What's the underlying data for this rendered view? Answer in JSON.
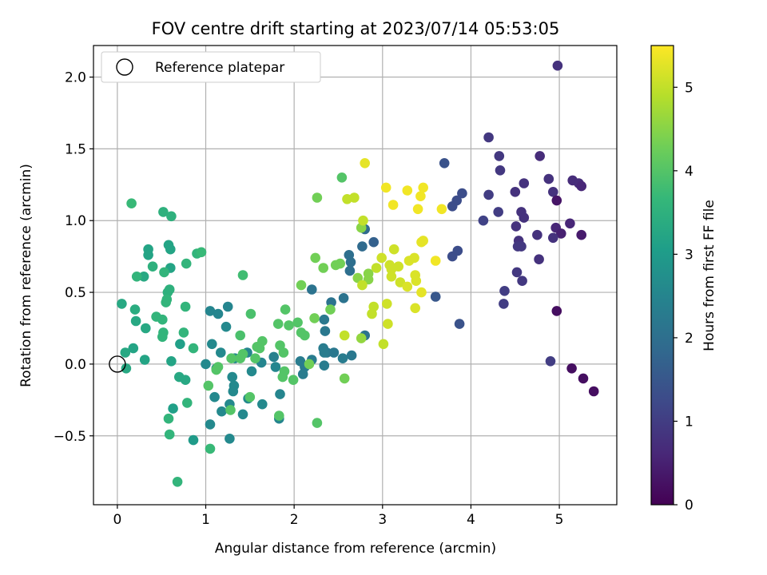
{
  "chart_data": {
    "type": "scatter",
    "title": "FOV centre drift starting at 2023/07/14 05:53:05",
    "xlabel": "Angular distance from reference (arcmin)",
    "ylabel": "Rotation from reference (arcmin)",
    "xlim": [
      -0.27,
      5.65
    ],
    "ylim": [
      -0.98,
      2.22
    ],
    "xticks": [
      0,
      1,
      2,
      3,
      4,
      5
    ],
    "xtick_labels": [
      "0",
      "1",
      "2",
      "3",
      "4",
      "5"
    ],
    "yticks": [
      -0.5,
      0.0,
      0.5,
      1.0,
      1.5,
      2.0
    ],
    "ytick_labels": [
      "−0.5",
      "0.0",
      "0.5",
      "1.0",
      "1.5",
      "2.0"
    ],
    "grid": true,
    "legend": {
      "position": "top-left",
      "label": "Reference platepar"
    },
    "reference_point": {
      "x": 0,
      "y": 0
    },
    "colorbar": {
      "label": "Hours from first FF file",
      "range": [
        0,
        5.5
      ],
      "ticks": [
        0,
        1,
        2,
        3,
        4,
        5
      ],
      "tick_labels": [
        "0",
        "1",
        "2",
        "3",
        "4",
        "5"
      ],
      "colormap": "viridis",
      "colors": [
        "#440154",
        "#482878",
        "#3e4989",
        "#31688e",
        "#26828e",
        "#1f9e89",
        "#35b779",
        "#6ece58",
        "#b5de2b",
        "#fde725"
      ]
    },
    "points": [
      {
        "x": 4.98,
        "y": 2.08,
        "h": 0.8
      },
      {
        "x": 4.2,
        "y": 1.58,
        "h": 0.9
      },
      {
        "x": 4.32,
        "y": 1.45,
        "h": 0.9
      },
      {
        "x": 4.78,
        "y": 1.45,
        "h": 0.7
      },
      {
        "x": 4.33,
        "y": 1.35,
        "h": 0.9
      },
      {
        "x": 4.88,
        "y": 1.29,
        "h": 0.8
      },
      {
        "x": 4.6,
        "y": 1.26,
        "h": 0.8
      },
      {
        "x": 5.15,
        "y": 1.28,
        "h": 0.7
      },
      {
        "x": 5.22,
        "y": 1.26,
        "h": 0.7
      },
      {
        "x": 5.25,
        "y": 1.24,
        "h": 0.6
      },
      {
        "x": 4.5,
        "y": 1.2,
        "h": 0.8
      },
      {
        "x": 4.93,
        "y": 1.2,
        "h": 0.8
      },
      {
        "x": 4.97,
        "y": 1.14,
        "h": 0.3
      },
      {
        "x": 4.2,
        "y": 1.18,
        "h": 1.0
      },
      {
        "x": 4.31,
        "y": 1.06,
        "h": 1.0
      },
      {
        "x": 4.57,
        "y": 1.06,
        "h": 0.8
      },
      {
        "x": 4.6,
        "y": 1.02,
        "h": 0.8
      },
      {
        "x": 4.14,
        "y": 1.0,
        "h": 1.1
      },
      {
        "x": 4.51,
        "y": 0.96,
        "h": 0.8
      },
      {
        "x": 4.75,
        "y": 0.9,
        "h": 0.8
      },
      {
        "x": 4.96,
        "y": 0.95,
        "h": 0.6
      },
      {
        "x": 5.12,
        "y": 0.98,
        "h": 0.6
      },
      {
        "x": 5.02,
        "y": 0.91,
        "h": 0.5
      },
      {
        "x": 5.25,
        "y": 0.9,
        "h": 0.4
      },
      {
        "x": 4.93,
        "y": 0.88,
        "h": 0.8
      },
      {
        "x": 4.54,
        "y": 0.86,
        "h": 0.8
      },
      {
        "x": 4.57,
        "y": 0.82,
        "h": 0.9
      },
      {
        "x": 4.53,
        "y": 0.82,
        "h": 0.9
      },
      {
        "x": 4.77,
        "y": 0.73,
        "h": 0.8
      },
      {
        "x": 4.52,
        "y": 0.64,
        "h": 0.9
      },
      {
        "x": 4.58,
        "y": 0.58,
        "h": 0.9
      },
      {
        "x": 4.38,
        "y": 0.51,
        "h": 1.0
      },
      {
        "x": 4.37,
        "y": 0.42,
        "h": 1.0
      },
      {
        "x": 4.97,
        "y": 0.37,
        "h": 0.2
      },
      {
        "x": 4.9,
        "y": 0.02,
        "h": 1.0
      },
      {
        "x": 5.14,
        "y": -0.03,
        "h": 0.2
      },
      {
        "x": 5.27,
        "y": -0.1,
        "h": 0.2
      },
      {
        "x": 5.39,
        "y": -0.19,
        "h": 0.2
      },
      {
        "x": 3.7,
        "y": 1.4,
        "h": 1.4
      },
      {
        "x": 3.9,
        "y": 1.19,
        "h": 1.3
      },
      {
        "x": 3.84,
        "y": 1.14,
        "h": 1.3
      },
      {
        "x": 3.79,
        "y": 1.1,
        "h": 1.3
      },
      {
        "x": 3.85,
        "y": 0.79,
        "h": 1.3
      },
      {
        "x": 3.79,
        "y": 0.75,
        "h": 1.3
      },
      {
        "x": 3.6,
        "y": 0.47,
        "h": 1.5
      },
      {
        "x": 3.87,
        "y": 0.28,
        "h": 1.4
      },
      {
        "x": 2.8,
        "y": 0.94,
        "h": 1.9
      },
      {
        "x": 2.9,
        "y": 0.85,
        "h": 1.7
      },
      {
        "x": 2.77,
        "y": 0.82,
        "h": 1.9
      },
      {
        "x": 2.62,
        "y": 0.76,
        "h": 2.0
      },
      {
        "x": 2.64,
        "y": 0.71,
        "h": 2.0
      },
      {
        "x": 2.63,
        "y": 0.65,
        "h": 2.0
      },
      {
        "x": 2.2,
        "y": 0.52,
        "h": 2.1
      },
      {
        "x": 2.56,
        "y": 0.46,
        "h": 2.1
      },
      {
        "x": 2.42,
        "y": 0.43,
        "h": 2.1
      },
      {
        "x": 2.34,
        "y": 0.31,
        "h": 2.2
      },
      {
        "x": 2.35,
        "y": 0.23,
        "h": 2.2
      },
      {
        "x": 2.8,
        "y": 0.2,
        "h": 2.1
      },
      {
        "x": 2.33,
        "y": 0.11,
        "h": 2.3
      },
      {
        "x": 2.37,
        "y": 0.08,
        "h": 2.2
      },
      {
        "x": 2.34,
        "y": 0.08,
        "h": 2.3
      },
      {
        "x": 2.45,
        "y": 0.08,
        "h": 2.2
      },
      {
        "x": 2.65,
        "y": 0.06,
        "h": 2.2
      },
      {
        "x": 2.55,
        "y": 0.04,
        "h": 2.3
      },
      {
        "x": 2.2,
        "y": 0.03,
        "h": 2.3
      },
      {
        "x": 2.07,
        "y": 0.02,
        "h": 2.3
      },
      {
        "x": 2.12,
        "y": -0.02,
        "h": 2.3
      },
      {
        "x": 2.34,
        "y": -0.01,
        "h": 2.3
      },
      {
        "x": 2.1,
        "y": -0.07,
        "h": 2.3
      },
      {
        "x": 1.05,
        "y": 0.37,
        "h": 2.5
      },
      {
        "x": 1.14,
        "y": 0.35,
        "h": 2.5
      },
      {
        "x": 1.25,
        "y": 0.4,
        "h": 2.5
      },
      {
        "x": 1.23,
        "y": 0.26,
        "h": 2.6
      },
      {
        "x": 1.07,
        "y": 0.14,
        "h": 2.6
      },
      {
        "x": 1.17,
        "y": 0.08,
        "h": 2.6
      },
      {
        "x": 1.47,
        "y": 0.08,
        "h": 2.5
      },
      {
        "x": 1.33,
        "y": 0.04,
        "h": 2.6
      },
      {
        "x": 1.77,
        "y": 0.05,
        "h": 2.4
      },
      {
        "x": 1.63,
        "y": 0.01,
        "h": 2.5
      },
      {
        "x": 1.0,
        "y": 0.0,
        "h": 2.6
      },
      {
        "x": 1.12,
        "y": -0.03,
        "h": 2.6
      },
      {
        "x": 1.79,
        "y": -0.02,
        "h": 2.5
      },
      {
        "x": 1.52,
        "y": -0.05,
        "h": 2.6
      },
      {
        "x": 1.3,
        "y": -0.09,
        "h": 2.6
      },
      {
        "x": 1.32,
        "y": -0.15,
        "h": 2.6
      },
      {
        "x": 1.31,
        "y": -0.19,
        "h": 2.6
      },
      {
        "x": 1.48,
        "y": -0.24,
        "h": 2.6
      },
      {
        "x": 1.1,
        "y": -0.23,
        "h": 2.6
      },
      {
        "x": 1.27,
        "y": -0.28,
        "h": 2.6
      },
      {
        "x": 1.64,
        "y": -0.28,
        "h": 2.6
      },
      {
        "x": 1.42,
        "y": -0.35,
        "h": 2.6
      },
      {
        "x": 1.18,
        "y": -0.33,
        "h": 2.6
      },
      {
        "x": 1.84,
        "y": -0.21,
        "h": 2.5
      },
      {
        "x": 1.83,
        "y": -0.38,
        "h": 2.5
      },
      {
        "x": 1.05,
        "y": -0.42,
        "h": 2.6
      },
      {
        "x": 1.27,
        "y": -0.52,
        "h": 2.6
      },
      {
        "x": 0.86,
        "y": -0.53,
        "h": 3.0
      },
      {
        "x": 0.63,
        "y": -0.31,
        "h": 3.1
      },
      {
        "x": 0.71,
        "y": 0.14,
        "h": 3.1
      },
      {
        "x": 0.61,
        "y": 0.02,
        "h": 3.2
      },
      {
        "x": 0.7,
        "y": -0.09,
        "h": 3.3
      },
      {
        "x": 0.77,
        "y": -0.11,
        "h": 3.3
      },
      {
        "x": 0.18,
        "y": 0.11,
        "h": 3.2
      },
      {
        "x": 0.09,
        "y": 0.08,
        "h": 3.3
      },
      {
        "x": 0.31,
        "y": 0.03,
        "h": 3.2
      },
      {
        "x": 0.35,
        "y": 0.8,
        "h": 3.2
      },
      {
        "x": 0.35,
        "y": 0.76,
        "h": 3.2
      },
      {
        "x": 0.58,
        "y": 0.83,
        "h": 3.2
      },
      {
        "x": 0.6,
        "y": 0.8,
        "h": 3.2
      },
      {
        "x": 0.6,
        "y": 0.67,
        "h": 3.2
      },
      {
        "x": 0.3,
        "y": 0.61,
        "h": 3.3
      },
      {
        "x": 0.32,
        "y": 0.25,
        "h": 3.3
      },
      {
        "x": 0.21,
        "y": 0.3,
        "h": 3.3
      },
      {
        "x": 0.2,
        "y": 0.38,
        "h": 3.4
      },
      {
        "x": 0.05,
        "y": 0.42,
        "h": 3.3
      },
      {
        "x": 0.1,
        "y": -0.03,
        "h": 3.3
      },
      {
        "x": 0.61,
        "y": 1.03,
        "h": 3.5
      },
      {
        "x": 0.52,
        "y": 1.06,
        "h": 3.5
      },
      {
        "x": 0.16,
        "y": 1.12,
        "h": 3.7
      },
      {
        "x": 0.22,
        "y": 0.61,
        "h": 3.6
      },
      {
        "x": 0.4,
        "y": 0.68,
        "h": 3.5
      },
      {
        "x": 0.53,
        "y": 0.64,
        "h": 3.6
      },
      {
        "x": 0.57,
        "y": 0.5,
        "h": 3.5
      },
      {
        "x": 0.59,
        "y": 0.52,
        "h": 3.5
      },
      {
        "x": 0.56,
        "y": 0.45,
        "h": 3.6
      },
      {
        "x": 0.55,
        "y": 0.43,
        "h": 3.6
      },
      {
        "x": 0.44,
        "y": 0.33,
        "h": 3.6
      },
      {
        "x": 0.51,
        "y": 0.31,
        "h": 3.6
      },
      {
        "x": 0.52,
        "y": 0.22,
        "h": 3.6
      },
      {
        "x": 0.51,
        "y": 0.19,
        "h": 3.6
      },
      {
        "x": 0.75,
        "y": 0.22,
        "h": 3.6
      },
      {
        "x": 0.77,
        "y": 0.4,
        "h": 3.6
      },
      {
        "x": 0.78,
        "y": 0.7,
        "h": 3.6
      },
      {
        "x": 0.9,
        "y": 0.77,
        "h": 3.6
      },
      {
        "x": 0.95,
        "y": 0.78,
        "h": 3.7
      },
      {
        "x": 0.86,
        "y": 0.11,
        "h": 3.6
      },
      {
        "x": 0.79,
        "y": -0.27,
        "h": 3.6
      },
      {
        "x": 0.58,
        "y": -0.38,
        "h": 3.6
      },
      {
        "x": 0.59,
        "y": -0.49,
        "h": 3.6
      },
      {
        "x": 0.68,
        "y": -0.82,
        "h": 3.6
      },
      {
        "x": 1.05,
        "y": -0.59,
        "h": 3.7
      },
      {
        "x": 1.42,
        "y": 0.62,
        "h": 3.8
      },
      {
        "x": 1.51,
        "y": 0.35,
        "h": 3.9
      },
      {
        "x": 1.39,
        "y": 0.2,
        "h": 3.9
      },
      {
        "x": 1.03,
        "y": -0.15,
        "h": 4.0
      },
      {
        "x": 1.12,
        "y": -0.04,
        "h": 4.0
      },
      {
        "x": 1.14,
        "y": -0.02,
        "h": 4.0
      },
      {
        "x": 1.29,
        "y": 0.04,
        "h": 4.0
      },
      {
        "x": 1.39,
        "y": 0.04,
        "h": 4.0
      },
      {
        "x": 1.42,
        "y": 0.07,
        "h": 4.0
      },
      {
        "x": 1.58,
        "y": 0.12,
        "h": 4.0
      },
      {
        "x": 1.64,
        "y": 0.16,
        "h": 4.0
      },
      {
        "x": 1.61,
        "y": 0.11,
        "h": 4.0
      },
      {
        "x": 1.56,
        "y": 0.04,
        "h": 4.0
      },
      {
        "x": 1.84,
        "y": 0.13,
        "h": 4.0
      },
      {
        "x": 1.88,
        "y": 0.08,
        "h": 4.0
      },
      {
        "x": 1.82,
        "y": 0.28,
        "h": 4.0
      },
      {
        "x": 1.94,
        "y": 0.27,
        "h": 4.0
      },
      {
        "x": 2.04,
        "y": 0.29,
        "h": 4.0
      },
      {
        "x": 2.08,
        "y": 0.22,
        "h": 4.0
      },
      {
        "x": 2.12,
        "y": 0.2,
        "h": 4.0
      },
      {
        "x": 1.9,
        "y": 0.38,
        "h": 4.0
      },
      {
        "x": 1.87,
        "y": -0.09,
        "h": 4.0
      },
      {
        "x": 1.89,
        "y": -0.05,
        "h": 4.0
      },
      {
        "x": 1.99,
        "y": -0.11,
        "h": 4.0
      },
      {
        "x": 1.5,
        "y": -0.23,
        "h": 4.0
      },
      {
        "x": 1.83,
        "y": -0.36,
        "h": 4.0
      },
      {
        "x": 1.28,
        "y": -0.32,
        "h": 4.0
      },
      {
        "x": 2.26,
        "y": -0.41,
        "h": 4.0
      },
      {
        "x": 2.54,
        "y": 1.3,
        "h": 4.0
      },
      {
        "x": 2.26,
        "y": 1.16,
        "h": 4.3
      },
      {
        "x": 2.24,
        "y": 0.74,
        "h": 4.3
      },
      {
        "x": 2.33,
        "y": 0.67,
        "h": 4.3
      },
      {
        "x": 2.47,
        "y": 0.69,
        "h": 4.3
      },
      {
        "x": 2.52,
        "y": 0.7,
        "h": 4.3
      },
      {
        "x": 2.08,
        "y": 0.55,
        "h": 4.3
      },
      {
        "x": 2.41,
        "y": 0.38,
        "h": 4.3
      },
      {
        "x": 2.23,
        "y": 0.32,
        "h": 4.3
      },
      {
        "x": 2.57,
        "y": -0.1,
        "h": 4.3
      },
      {
        "x": 2.17,
        "y": 0.0,
        "h": 4.3
      },
      {
        "x": 2.76,
        "y": 0.95,
        "h": 4.5
      },
      {
        "x": 2.72,
        "y": 0.6,
        "h": 4.5
      },
      {
        "x": 2.84,
        "y": 0.63,
        "h": 4.5
      },
      {
        "x": 2.84,
        "y": 0.59,
        "h": 4.5
      },
      {
        "x": 2.76,
        "y": 0.18,
        "h": 4.6
      },
      {
        "x": 2.6,
        "y": 1.15,
        "h": 5.0
      },
      {
        "x": 2.68,
        "y": 1.16,
        "h": 5.0
      },
      {
        "x": 2.78,
        "y": 1.0,
        "h": 5.0
      },
      {
        "x": 2.57,
        "y": 0.2,
        "h": 5.0
      },
      {
        "x": 2.77,
        "y": 0.55,
        "h": 5.0
      },
      {
        "x": 2.88,
        "y": 0.35,
        "h": 5.0
      },
      {
        "x": 2.9,
        "y": 0.4,
        "h": 5.0
      },
      {
        "x": 2.93,
        "y": 0.67,
        "h": 5.0
      },
      {
        "x": 3.01,
        "y": 0.14,
        "h": 5.0
      },
      {
        "x": 3.06,
        "y": 0.28,
        "h": 5.1
      },
      {
        "x": 3.05,
        "y": 0.42,
        "h": 5.1
      },
      {
        "x": 2.99,
        "y": 0.74,
        "h": 5.1
      },
      {
        "x": 3.08,
        "y": 0.69,
        "h": 5.1
      },
      {
        "x": 3.1,
        "y": 0.66,
        "h": 5.1
      },
      {
        "x": 3.13,
        "y": 0.8,
        "h": 5.1
      },
      {
        "x": 3.18,
        "y": 0.68,
        "h": 5.1
      },
      {
        "x": 3.2,
        "y": 0.57,
        "h": 5.1
      },
      {
        "x": 3.1,
        "y": 0.61,
        "h": 5.1
      },
      {
        "x": 3.28,
        "y": 0.54,
        "h": 5.2
      },
      {
        "x": 3.3,
        "y": 0.72,
        "h": 5.2
      },
      {
        "x": 3.36,
        "y": 0.74,
        "h": 5.2
      },
      {
        "x": 3.37,
        "y": 0.62,
        "h": 5.2
      },
      {
        "x": 3.38,
        "y": 0.58,
        "h": 5.2
      },
      {
        "x": 3.37,
        "y": 0.39,
        "h": 5.2
      },
      {
        "x": 3.44,
        "y": 0.5,
        "h": 5.3
      },
      {
        "x": 3.44,
        "y": 0.85,
        "h": 5.3
      },
      {
        "x": 3.46,
        "y": 0.86,
        "h": 5.3
      },
      {
        "x": 3.04,
        "y": 1.23,
        "h": 5.4
      },
      {
        "x": 3.12,
        "y": 1.11,
        "h": 5.4
      },
      {
        "x": 3.28,
        "y": 1.21,
        "h": 5.4
      },
      {
        "x": 3.43,
        "y": 1.17,
        "h": 5.4
      },
      {
        "x": 3.46,
        "y": 1.23,
        "h": 5.4
      },
      {
        "x": 3.4,
        "y": 1.08,
        "h": 5.4
      },
      {
        "x": 3.67,
        "y": 1.08,
        "h": 5.4
      },
      {
        "x": 3.6,
        "y": 0.72,
        "h": 5.4
      },
      {
        "x": 2.8,
        "y": 1.4,
        "h": 5.3
      }
    ]
  }
}
